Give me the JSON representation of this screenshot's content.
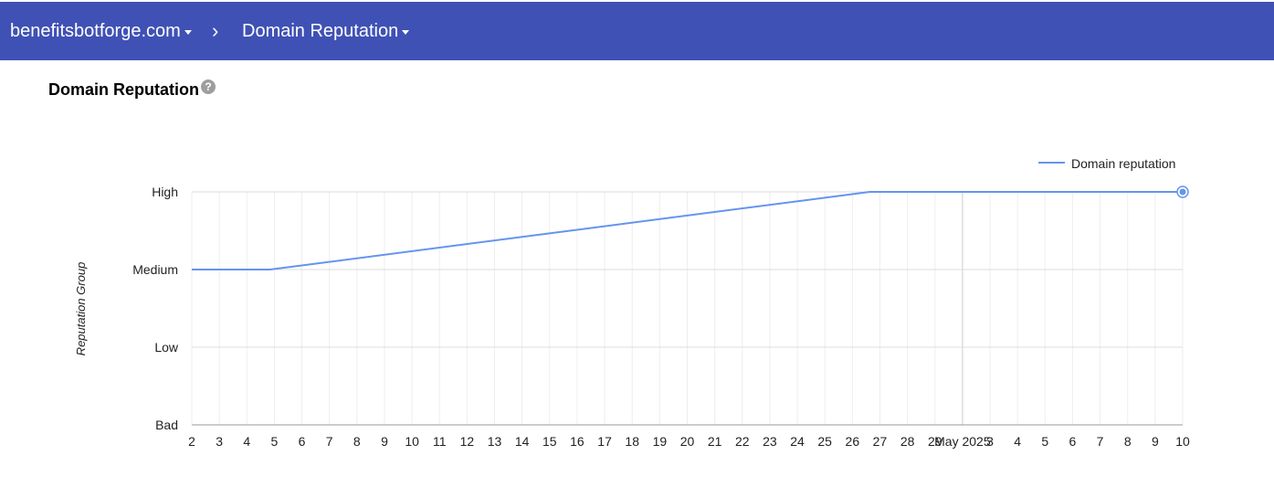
{
  "header": {
    "domain": "benefitsbotforge.com",
    "separator": "›",
    "section": "Domain Reputation"
  },
  "page": {
    "title": "Domain Reputation",
    "help_glyph": "?"
  },
  "colors": {
    "header_bg": "#3f51b5",
    "line": "#6495ed",
    "grid": "#dddddd",
    "grid_minor": "#eeeeee"
  },
  "chart_data": {
    "type": "line",
    "ylabel": "Reputation Group",
    "y_categories": [
      "Bad",
      "Low",
      "Medium",
      "High"
    ],
    "x_tick_labels": [
      "2",
      "3",
      "4",
      "5",
      "6",
      "7",
      "8",
      "9",
      "10",
      "11",
      "12",
      "13",
      "14",
      "15",
      "16",
      "17",
      "18",
      "19",
      "20",
      "21",
      "22",
      "23",
      "24",
      "25",
      "26",
      "27",
      "28",
      "29",
      "May 2025",
      "3",
      "4",
      "5",
      "6",
      "7",
      "8",
      "9",
      "10"
    ],
    "x_range": [
      "2025-04-02",
      "2025-05-10"
    ],
    "series": [
      {
        "name": "Domain reputation",
        "points": [
          {
            "x": "2025-04-02",
            "y": "Medium"
          },
          {
            "x": "2025-04-05",
            "y": "Medium"
          },
          {
            "x": "2025-04-28",
            "y": "High"
          },
          {
            "x": "2025-05-10",
            "y": "High"
          }
        ]
      }
    ],
    "legend": "top-right",
    "grid": true
  }
}
